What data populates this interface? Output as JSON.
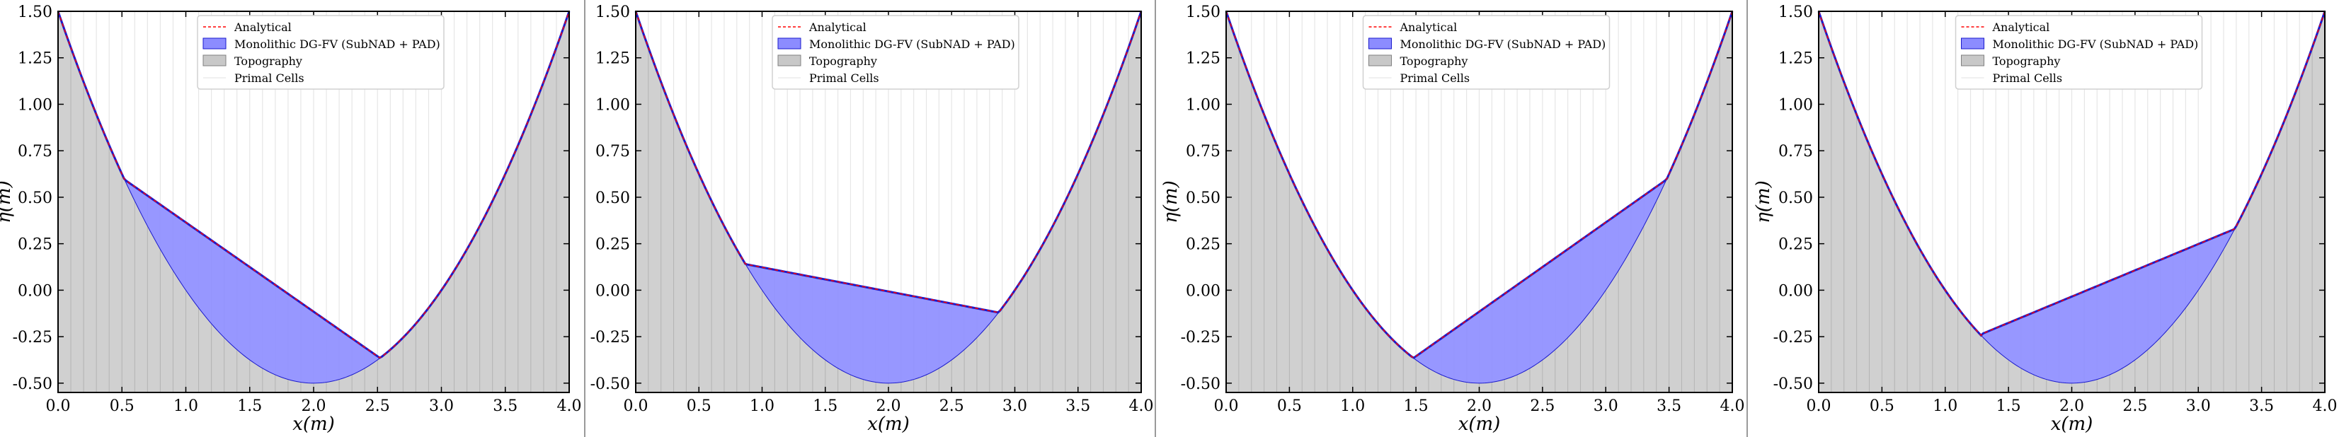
{
  "figure": {
    "separator_color": "#9a9a9a"
  },
  "colors": {
    "analytical": "#ff0000",
    "dgfv_fill": "#8c8cff",
    "dgfv_edge": "#1a1acc",
    "topography_fill": "#c8c8c8",
    "topography_edge": "#808080",
    "cells": "#e6e6e6"
  },
  "chart_data": [
    {
      "type": "area",
      "xlabel": "x(m)",
      "ylabel": "η(m)",
      "xlim": [
        0.0,
        4.0
      ],
      "ylim": [
        -0.55,
        1.5
      ],
      "xticks": [
        "0.0",
        "0.5",
        "1.0",
        "1.5",
        "2.0",
        "2.5",
        "3.0",
        "3.5",
        "4.0"
      ],
      "yticks": [
        "1.50",
        "1.25",
        "1.00",
        "0.75",
        "0.50",
        "0.25",
        "0.00",
        "-0.25",
        "-0.50"
      ],
      "legend": {
        "position": "top-center",
        "entries": [
          "Analytical",
          "Monolithic DG-FV (SubNAD + PAD)",
          "Topography",
          "Primal Cells"
        ]
      },
      "topography": {
        "formula": "0.5*(x-2)^2 - 0.5",
        "x_range": [
          0.0,
          4.0
        ]
      },
      "cells": {
        "count": 40
      },
      "water_surface": {
        "x_left": 0.52,
        "y_left": 0.595,
        "x_right": 2.52,
        "y_right": -0.365
      }
    },
    {
      "type": "area",
      "xlabel": "x(m)",
      "ylabel": "",
      "xlim": [
        0.0,
        4.0
      ],
      "ylim": [
        -0.55,
        1.5
      ],
      "xticks": [
        "0.0",
        "0.5",
        "1.0",
        "1.5",
        "2.0",
        "2.5",
        "3.0",
        "3.5",
        "4.0"
      ],
      "yticks": [
        "1.50",
        "1.25",
        "1.00",
        "0.75",
        "0.50",
        "0.25",
        "0.00",
        "-0.25",
        "-0.50"
      ],
      "legend": {
        "position": "top-center",
        "entries": [
          "Analytical",
          "Monolithic DG-FV (SubNAD + PAD)",
          "Topography",
          "Primal Cells"
        ]
      },
      "topography": {
        "formula": "0.5*(x-2)^2 - 0.5",
        "x_range": [
          0.0,
          4.0
        ]
      },
      "cells": {
        "count": 40
      },
      "water_surface": {
        "x_left": 0.87,
        "y_left": 0.14,
        "x_right": 2.87,
        "y_right": -0.12
      }
    },
    {
      "type": "area",
      "xlabel": "x(m)",
      "ylabel": "η(m)",
      "xlim": [
        0.0,
        4.0
      ],
      "ylim": [
        -0.55,
        1.5
      ],
      "xticks": [
        "0.0",
        "0.5",
        "1.0",
        "1.5",
        "2.0",
        "2.5",
        "3.0",
        "3.5",
        "4.0"
      ],
      "yticks": [
        "1.50",
        "1.25",
        "1.00",
        "0.75",
        "0.50",
        "0.25",
        "0.00",
        "-0.25",
        "-0.50"
      ],
      "legend": {
        "position": "top-center",
        "entries": [
          "Analytical",
          "Monolithic DG-FV (SubNAD + PAD)",
          "Topography",
          "Primal Cells"
        ]
      },
      "topography": {
        "formula": "0.5*(x-2)^2 - 0.5",
        "x_range": [
          0.0,
          4.0
        ]
      },
      "cells": {
        "count": 40
      },
      "water_surface": {
        "x_left": 1.48,
        "y_left": -0.365,
        "x_right": 3.48,
        "y_right": 0.595
      }
    },
    {
      "type": "area",
      "xlabel": "x(m)",
      "ylabel": "η(m)",
      "xlim": [
        0.0,
        4.0
      ],
      "ylim": [
        -0.55,
        1.5
      ],
      "xticks": [
        "0.0",
        "0.5",
        "1.0",
        "1.5",
        "2.0",
        "2.5",
        "3.0",
        "3.5",
        "4.0"
      ],
      "yticks": [
        "1.50",
        "1.25",
        "1.00",
        "0.75",
        "0.50",
        "0.25",
        "0.00",
        "-0.25",
        "-0.50"
      ],
      "legend": {
        "position": "top-center",
        "entries": [
          "Analytical",
          "Monolithic DG-FV (SubNAD + PAD)",
          "Topography",
          "Primal Cells"
        ]
      },
      "topography": {
        "formula": "0.5*(x-2)^2 - 0.5",
        "x_range": [
          0.0,
          4.0
        ]
      },
      "cells": {
        "count": 40
      },
      "water_surface": {
        "x_left": 1.29,
        "y_left": -0.235,
        "x_right": 3.29,
        "y_right": 0.33
      }
    }
  ]
}
